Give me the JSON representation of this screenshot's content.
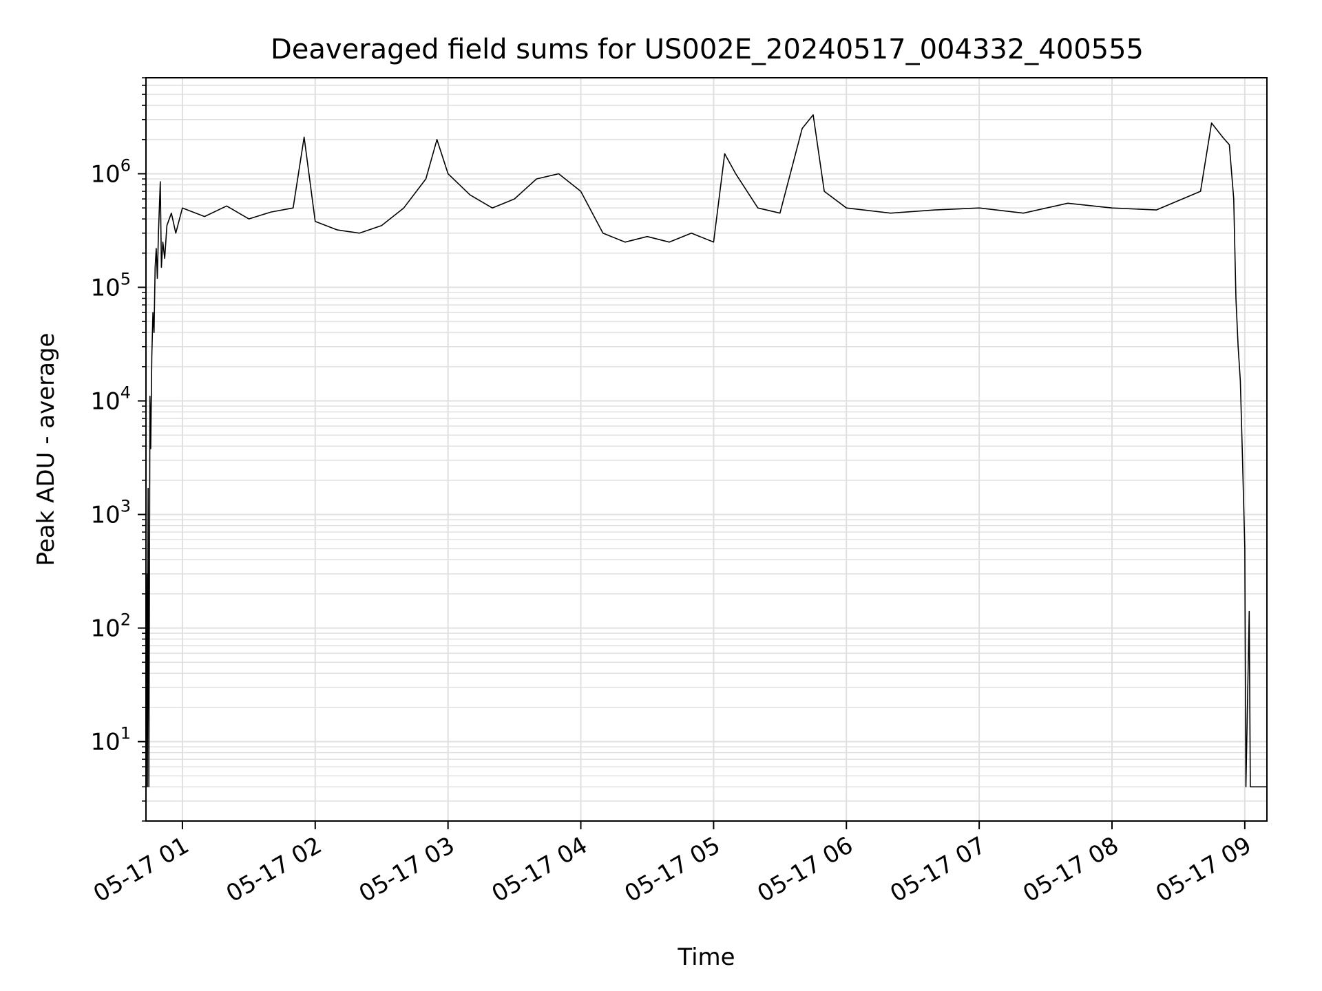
{
  "chart_data": {
    "type": "line",
    "title": "Deaveraged field sums for US002E_20240517_004332_400555",
    "xlabel": "Time",
    "ylabel": "Peak ADU - average",
    "y_scale": "log",
    "ylim": [
      2,
      7000000
    ],
    "xlim": [
      "05-17 00:43:32",
      "05-17 09:10:00"
    ],
    "x_ticks": [
      {
        "t": "05-17 01:00",
        "label": "05-17 01"
      },
      {
        "t": "05-17 02:00",
        "label": "05-17 02"
      },
      {
        "t": "05-17 03:00",
        "label": "05-17 03"
      },
      {
        "t": "05-17 04:00",
        "label": "05-17 04"
      },
      {
        "t": "05-17 05:00",
        "label": "05-17 05"
      },
      {
        "t": "05-17 06:00",
        "label": "05-17 06"
      },
      {
        "t": "05-17 07:00",
        "label": "05-17 07"
      },
      {
        "t": "05-17 08:00",
        "label": "05-17 08"
      },
      {
        "t": "05-17 09:00",
        "label": "05-17 09"
      }
    ],
    "y_ticks": [
      {
        "value": 10,
        "base": "10",
        "exp": "1"
      },
      {
        "value": 100,
        "base": "10",
        "exp": "2"
      },
      {
        "value": 1000,
        "base": "10",
        "exp": "3"
      },
      {
        "value": 10000,
        "base": "10",
        "exp": "4"
      },
      {
        "value": 100000,
        "base": "10",
        "exp": "5"
      },
      {
        "value": 1000000,
        "base": "10",
        "exp": "6"
      }
    ],
    "grid": true,
    "line_color": "#000000",
    "grid_color": "#e0e0e0",
    "series": [
      {
        "points": [
          [
            "05-17 00:43:32",
            4
          ],
          [
            "05-17 00:43:50",
            300
          ],
          [
            "05-17 00:44:10",
            4
          ],
          [
            "05-17 00:44:30",
            1700
          ],
          [
            "05-17 00:44:50",
            4
          ],
          [
            "05-17 00:45:20",
            11000
          ],
          [
            "05-17 00:45:40",
            3800
          ],
          [
            "05-17 00:46:10",
            25000
          ],
          [
            "05-17 00:46:40",
            60000
          ],
          [
            "05-17 00:47:10",
            40000
          ],
          [
            "05-17 00:47:40",
            150000
          ],
          [
            "05-17 00:48:10",
            220000
          ],
          [
            "05-17 00:48:40",
            120000
          ],
          [
            "05-17 00:49:10",
            300000
          ],
          [
            "05-17 00:50:00",
            850000
          ],
          [
            "05-17 00:50:30",
            150000
          ],
          [
            "05-17 00:51:10",
            250000
          ],
          [
            "05-17 00:52:00",
            180000
          ],
          [
            "05-17 00:53:00",
            350000
          ],
          [
            "05-17 00:55:00",
            450000
          ],
          [
            "05-17 00:57:00",
            300000
          ],
          [
            "05-17 01:00:00",
            500000
          ],
          [
            "05-17 01:10:00",
            420000
          ],
          [
            "05-17 01:20:00",
            520000
          ],
          [
            "05-17 01:30:00",
            400000
          ],
          [
            "05-17 01:40:00",
            460000
          ],
          [
            "05-17 01:50:00",
            500000
          ],
          [
            "05-17 01:55:00",
            2100000
          ],
          [
            "05-17 02:00:00",
            380000
          ],
          [
            "05-17 02:10:00",
            320000
          ],
          [
            "05-17 02:20:00",
            300000
          ],
          [
            "05-17 02:30:00",
            350000
          ],
          [
            "05-17 02:40:00",
            500000
          ],
          [
            "05-17 02:50:00",
            900000
          ],
          [
            "05-17 02:55:00",
            2000000
          ],
          [
            "05-17 03:00:00",
            1000000
          ],
          [
            "05-17 03:10:00",
            650000
          ],
          [
            "05-17 03:20:00",
            500000
          ],
          [
            "05-17 03:30:00",
            600000
          ],
          [
            "05-17 03:40:00",
            900000
          ],
          [
            "05-17 03:50:00",
            1000000
          ],
          [
            "05-17 04:00:00",
            700000
          ],
          [
            "05-17 04:10:00",
            300000
          ],
          [
            "05-17 04:20:00",
            250000
          ],
          [
            "05-17 04:30:00",
            280000
          ],
          [
            "05-17 04:40:00",
            250000
          ],
          [
            "05-17 04:50:00",
            300000
          ],
          [
            "05-17 05:00:00",
            250000
          ],
          [
            "05-17 05:05:00",
            1500000
          ],
          [
            "05-17 05:10:00",
            1000000
          ],
          [
            "05-17 05:20:00",
            500000
          ],
          [
            "05-17 05:30:00",
            450000
          ],
          [
            "05-17 05:40:00",
            2500000
          ],
          [
            "05-17 05:45:00",
            3300000
          ],
          [
            "05-17 05:50:00",
            700000
          ],
          [
            "05-17 06:00:00",
            500000
          ],
          [
            "05-17 06:20:00",
            450000
          ],
          [
            "05-17 06:40:00",
            480000
          ],
          [
            "05-17 07:00:00",
            500000
          ],
          [
            "05-17 07:20:00",
            450000
          ],
          [
            "05-17 07:40:00",
            550000
          ],
          [
            "05-17 08:00:00",
            500000
          ],
          [
            "05-17 08:20:00",
            480000
          ],
          [
            "05-17 08:40:00",
            700000
          ],
          [
            "05-17 08:45:00",
            2800000
          ],
          [
            "05-17 08:50:00",
            2100000
          ],
          [
            "05-17 08:53:00",
            1800000
          ],
          [
            "05-17 08:55:00",
            600000
          ],
          [
            "05-17 08:56:00",
            80000
          ],
          [
            "05-17 08:57:00",
            30000
          ],
          [
            "05-17 08:58:00",
            15000
          ],
          [
            "05-17 08:59:00",
            3000
          ],
          [
            "05-17 09:00:00",
            500
          ],
          [
            "05-17 09:00:30",
            4
          ],
          [
            "05-17 09:02:00",
            140
          ],
          [
            "05-17 09:02:30",
            4
          ],
          [
            "05-17 09:10:00",
            4
          ]
        ]
      }
    ]
  }
}
